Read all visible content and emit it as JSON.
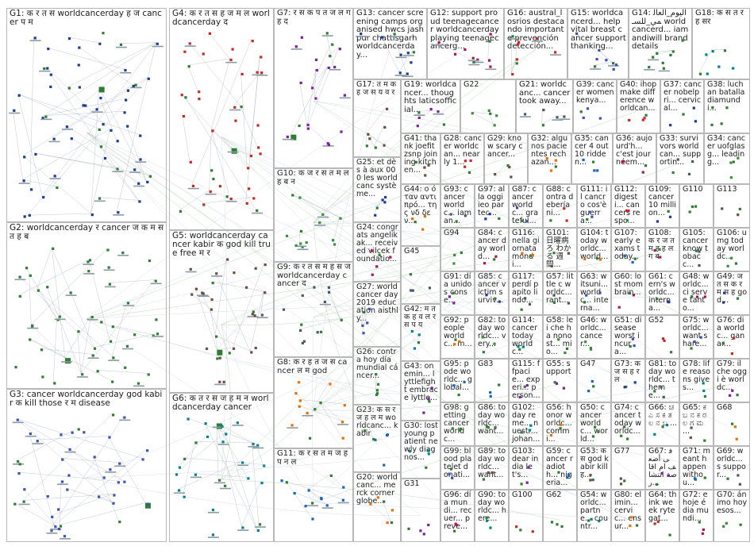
{
  "groups": [
    {
      "id": "G1",
      "label": "G1: क र त स worldcancerday ह ज cancer प म"
    },
    {
      "id": "G2",
      "label": "G2: worldcancerday र cancer ज क म स त ह ब"
    },
    {
      "id": "G3",
      "label": "G3: cancer worldcancerday god kabir क kill those र म disease"
    },
    {
      "id": "G4",
      "label": "G4: क र त स ह ज म ल worldcancerday द"
    },
    {
      "id": "G5",
      "label": "G5: worldcancerday cancer kabir क god kill true free म र"
    },
    {
      "id": "G6",
      "label": "G6: क त र स ज ह म न worldcancerday cancer"
    },
    {
      "id": "G7",
      "label": "G7: र स क प त ज ल ग ह द"
    },
    {
      "id": "G8",
      "label": "G8: क र ह त ज स cancer ल म god"
    },
    {
      "id": "G9",
      "label": "G9: क र त स म ह स ज worldcancerday cancer द"
    },
    {
      "id": "G10",
      "label": "G10: क ज र स त म ल ह ब न"
    },
    {
      "id": "G11",
      "label": "G11: क र स त म ज ह प न ल"
    },
    {
      "id": "G12",
      "label": "G12: support proud teenagecancer worldcancerday playing teenagecancerg..."
    },
    {
      "id": "G13",
      "label": "G13: cancer screening camps organised hwcs jashpur chattisgarh worldcancerday..."
    },
    {
      "id": "G14",
      "label": "G14: اليوم_العالمي_للسـ worldcancerd... iamandiwill branddetails"
    },
    {
      "id": "G15",
      "label": "G15: worldcancerd... help vital breast cancer support thanking..."
    },
    {
      "id": "G16",
      "label": "G16: austral_losrios destacando importante prevención detección..."
    },
    {
      "id": "G17",
      "label": "G17: त म क ह ज स य व र"
    },
    {
      "id": "G18",
      "label": "G18: क स त र ह सर"
    },
    {
      "id": "G19",
      "label": "G19: worldcancer... thoughts laticsofficial..."
    },
    {
      "id": "G20",
      "label": "G20: worldcanc... merck corner globe..."
    },
    {
      "id": "G21",
      "label": "G21: worldcanc... cancer took away..."
    },
    {
      "id": "G22",
      "label": "G22"
    },
    {
      "id": "G23",
      "label": "G23: क स र ज ह ल म worldcanc... kabir"
    },
    {
      "id": "G24",
      "label": "G24: congrats angelikak... received vilcek foundatio..."
    },
    {
      "id": "G25",
      "label": "G25: et dès à aux 000 les worldcanc système..."
    },
    {
      "id": "G26",
      "label": "G26: contra hoy día mundial cáncer..."
    },
    {
      "id": "G27",
      "label": "G27: world cancer day 2019 education aisthly..."
    },
    {
      "id": "G28",
      "label": "G28: cancer worldcan... nearly 1..."
    },
    {
      "id": "G29",
      "label": "G29: know scary cancer..."
    },
    {
      "id": "G30",
      "label": "G30: lost young patient newly diagnos..."
    },
    {
      "id": "G31",
      "label": "G31"
    },
    {
      "id": "G32",
      "label": "G32: algunos pacientes rechazan..."
    },
    {
      "id": "G33",
      "label": "G33: survivors worldcan... supportin..."
    },
    {
      "id": "G34",
      "label": "G34: cancer uofglasg... leading..."
    },
    {
      "id": "G35",
      "label": "G35: cancer 4 out 10 ridden..."
    },
    {
      "id": "G36",
      "label": "G36: aujourd'h... c'est journéem..."
    },
    {
      "id": "G37",
      "label": "G37: cancer nobelpri... cervical..."
    },
    {
      "id": "G38",
      "label": "G38: luchan batalla diamundi..."
    },
    {
      "id": "G39",
      "label": "G39: cancer women kenya..."
    },
    {
      "id": "G40",
      "label": "G40: ihop make difference worldcan..."
    },
    {
      "id": "G41",
      "label": "G41: thank joefitzsnp joining kitchen..."
    },
    {
      "id": "G42",
      "label": "G42: म त क ह व ल र स प य"
    },
    {
      "id": "G43",
      "label": "G43: onemin... lyttlefight embrace lyttle..."
    },
    {
      "id": "G44",
      "label": "G44: ο όταν αντιπρό... της νδ δεν..."
    },
    {
      "id": "G45",
      "label": "G45"
    },
    {
      "id": "G46",
      "label": "G46: worldc... cancer..."
    },
    {
      "id": "G47",
      "label": "G47"
    },
    {
      "id": "G48",
      "label": "G48: worldc... ci serve tanto..."
    },
    {
      "id": "G49",
      "label": "G49: ज त स क र म स ह god..."
    },
    {
      "id": "G50",
      "label": "G50: cancer worldc... world..."
    },
    {
      "id": "G51",
      "label": "G51: disease worst incura..."
    },
    {
      "id": "G52",
      "label": "G52"
    },
    {
      "id": "G53",
      "label": "G53: क स god kabir kill ह..."
    },
    {
      "id": "G54",
      "label": "G54: worldc... partne... countr..."
    },
    {
      "id": "G55",
      "label": "G55: support"
    },
    {
      "id": "G56",
      "label": "G56: honor worldc... commi..."
    },
    {
      "id": "G57",
      "label": "G57: little c worldc... rant..."
    },
    {
      "id": "G58",
      "label": "G58: lei che ha nonost... mio..."
    },
    {
      "id": "G59",
      "label": "G59: cancer radioth... nigeria..."
    },
    {
      "id": "G60",
      "label": "G60: lost mom brain..."
    },
    {
      "id": "G61",
      "label": "G61: cern's worldc... interna..."
    },
    {
      "id": "G62",
      "label": "G62"
    },
    {
      "id": "G63",
      "label": "G63: witsuni... worldc... interna..."
    },
    {
      "id": "G64",
      "label": "G64: think week rytegat..."
    },
    {
      "id": "G65",
      "label": "G65: ಕ ಬ ನ ಕ ರ ಲ ಗ ಮ ..."
    },
    {
      "id": "G66",
      "label": "G66: ಚ ಎ ಸ ಕ ತ ಲ ನ ಬ ..."
    },
    {
      "id": "G67",
      "label": "G67: فى أضعف ام اقاصة انتشار..."
    },
    {
      "id": "G68",
      "label": "G68"
    },
    {
      "id": "G69",
      "label": "G69: worldc... s suppor..."
    },
    {
      "id": "G70",
      "label": "G70: ánimo hoy esos..."
    },
    {
      "id": "G71",
      "label": "G71: meant happen withou..."
    },
    {
      "id": "G72",
      "label": "G72: e hoje é dia mundi..."
    },
    {
      "id": "G73",
      "label": "G73: क ज स ह र ल"
    },
    {
      "id": "G74",
      "label": "G74: cancer today worldc..."
    },
    {
      "id": "G75",
      "label": "G75: worldc... want share..."
    },
    {
      "id": "G76",
      "label": "G76: dia worldc... ganar..."
    },
    {
      "id": "G77",
      "label": "G77"
    },
    {
      "id": "G78",
      "label": "G78: life reasons gives..."
    },
    {
      "id": "G79",
      "label": "G79: il che oggi è worldc..."
    },
    {
      "id": "G80",
      "label": "G80: elimin... cervic... ensur..."
    },
    {
      "id": "G81",
      "label": "G81: today worldc... theme..."
    },
    {
      "id": "G82",
      "label": "G82: today worldc... very..."
    },
    {
      "id": "G83",
      "label": "G83"
    },
    {
      "id": "G84",
      "label": "G84: cancer day world..."
    },
    {
      "id": "G85",
      "label": "G85: cancer victim surviv..."
    },
    {
      "id": "G86",
      "label": "G86: today worldc... want..."
    },
    {
      "id": "G87",
      "label": "G87: cancer worldc... grateful..."
    },
    {
      "id": "G88",
      "label": "G88: contra debería ni..."
    },
    {
      "id": "G89",
      "label": "G89: today worldc... want..."
    },
    {
      "id": "G90",
      "label": "G90: today worldc... here..."
    },
    {
      "id": "G91",
      "label": "G91: día unidos conse..."
    },
    {
      "id": "G92",
      "label": "G92: people worldc... m..."
    },
    {
      "id": "G93",
      "label": "G93: cancer worldc... iaman..."
    },
    {
      "id": "G94",
      "label": "G94"
    },
    {
      "id": "G95",
      "label": "G95: pode worldc... global..."
    },
    {
      "id": "G96",
      "label": "G96: día mundi... recuer... preve..."
    },
    {
      "id": "G97",
      "label": "G97: alla oggi ieo partec..."
    },
    {
      "id": "G98",
      "label": "G98: getting cancer worldc..."
    },
    {
      "id": "G99",
      "label": "G99: blood platelet donati..."
    },
    {
      "id": "G100",
      "label": "G100"
    },
    {
      "id": "G101",
      "label": "G101: 日曜病ろ わかる 週間..."
    },
    {
      "id": "G102",
      "label": "G102: day reme... nuestr... johan..."
    },
    {
      "id": "G103",
      "label": "G103: dear india let's..."
    },
    {
      "id": "G104",
      "label": "G104: today worldc... world..."
    },
    {
      "id": "G105",
      "label": "G105: cancer know tobacc..."
    },
    {
      "id": "G106",
      "label": "G106: umg today worldc..."
    },
    {
      "id": "G107",
      "label": "G107: early exams today..."
    },
    {
      "id": "G108",
      "label": "G108: क र ज त म ह ह ल ग ब"
    },
    {
      "id": "G109",
      "label": "G109: cancer 10 million..."
    },
    {
      "id": "G110",
      "label": "G110"
    },
    {
      "id": "G111",
      "label": "G111: il cancro cos'è guerra..."
    },
    {
      "id": "G112",
      "label": "G112: digesti... cancers respo..."
    },
    {
      "id": "G113",
      "label": "G113"
    },
    {
      "id": "G114",
      "label": "G114: cancer today worldc..."
    },
    {
      "id": "G115",
      "label": "G115: ffpacie... experi... person..."
    },
    {
      "id": "G116",
      "label": "G116: nella giornata mondi..."
    },
    {
      "id": "G117",
      "label": "G117: perdí papito lindo..."
    }
  ]
}
